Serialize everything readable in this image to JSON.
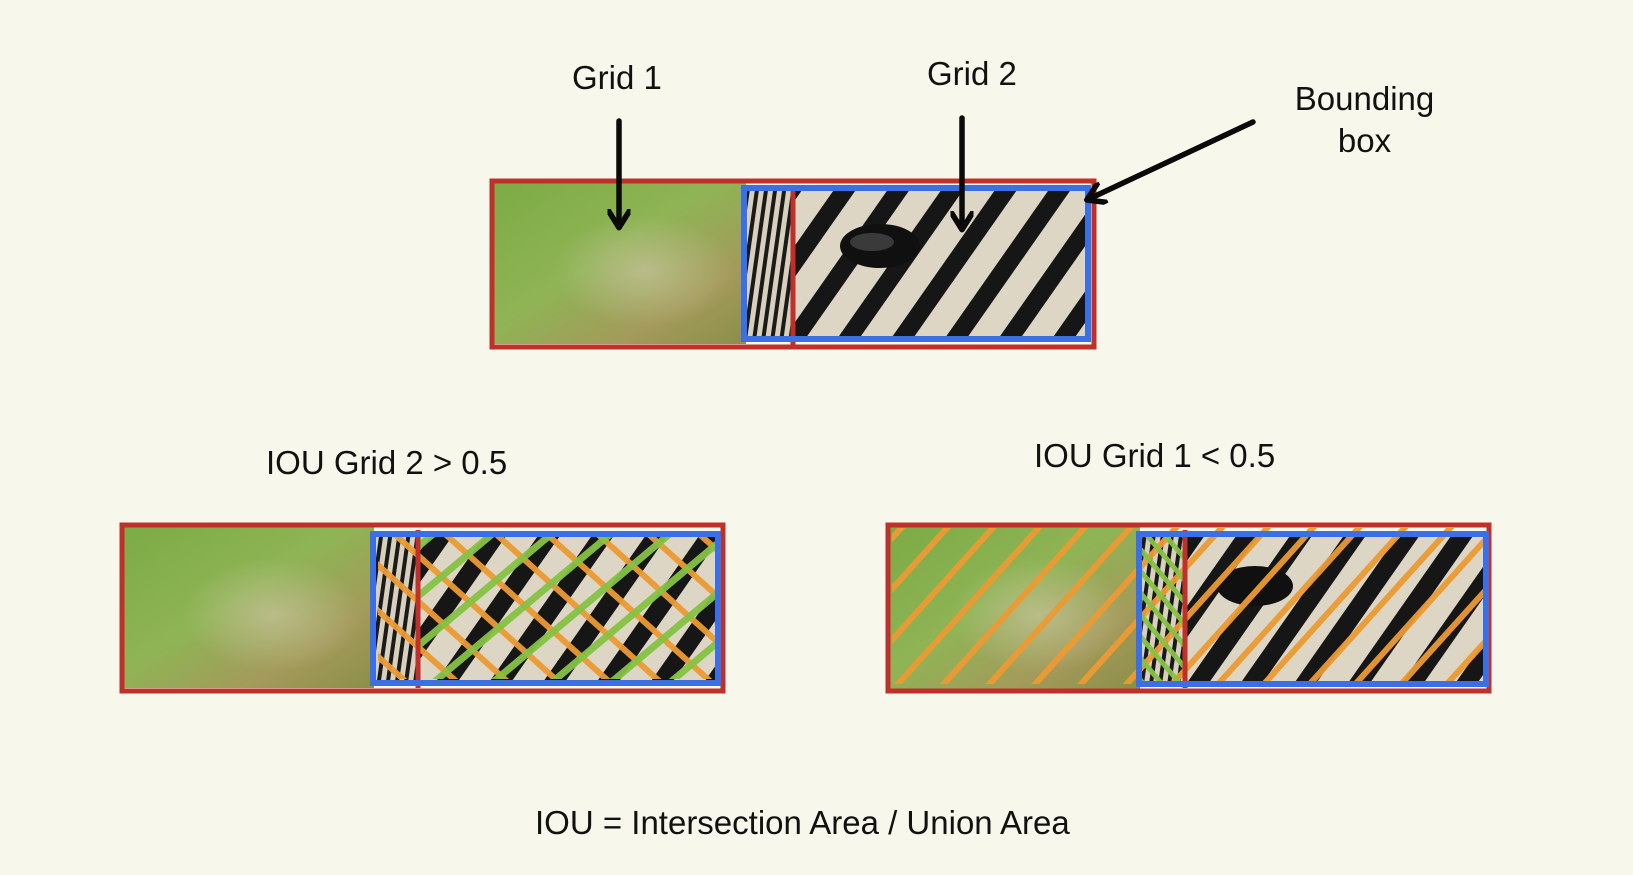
{
  "labels": {
    "grid1": "Grid 1",
    "grid2": "Grid 2",
    "bounding_box": "Bounding box",
    "iou_grid2": "IOU Grid 2 > 0.5",
    "iou_grid1": "IOU Grid 1 < 0.5",
    "formula": "IOU = Intersection Area / Union Area"
  },
  "colors": {
    "background": "#f8f7ec",
    "grid_outline": "#c0302a",
    "bounding_box": "#3b6fe6",
    "union_hatch": "#ec9a33",
    "intersection_hatch": "#86c243",
    "grass_green": "#7cab45",
    "zebra_light": "#ddd6c4",
    "zebra_dark": "#141414"
  },
  "icons": [
    "arrow-down-icon",
    "arrow-down-icon",
    "arrow-left-icon"
  ]
}
